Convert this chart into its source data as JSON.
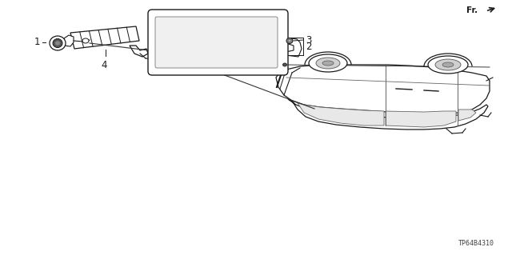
{
  "bg_color": "#ffffff",
  "line_color": "#1a1a1a",
  "part_code": "TP64B4310",
  "fr_label": "Fr.",
  "label_fontsize": 8,
  "code_fontsize": 6
}
